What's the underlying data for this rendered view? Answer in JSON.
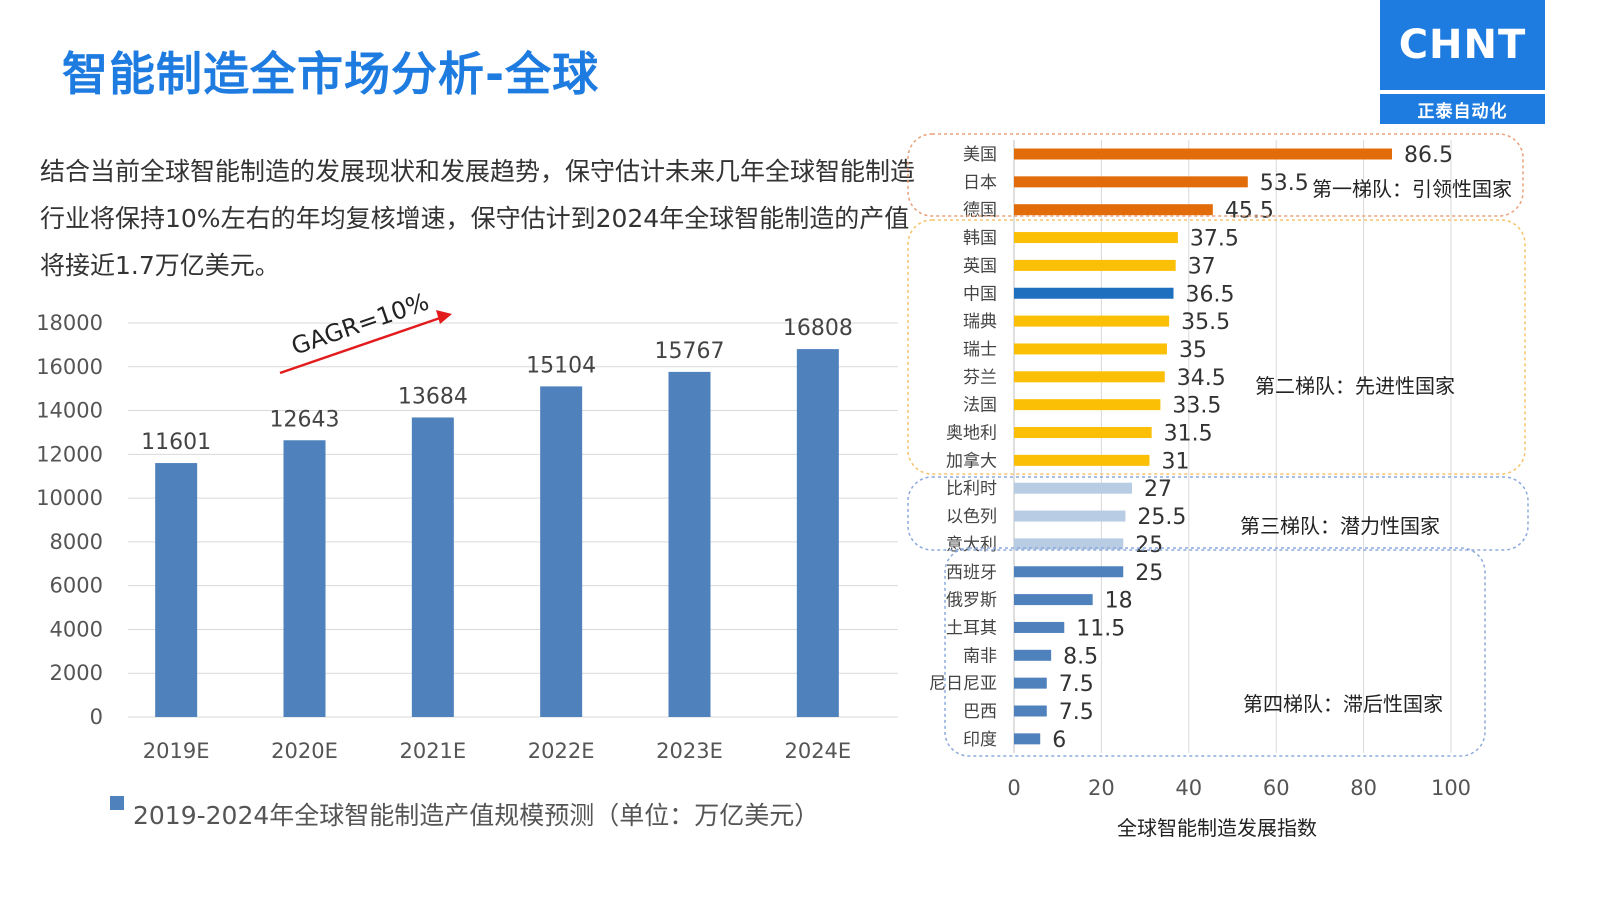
{
  "title": "智能制造全市场分析-全球",
  "logo": {
    "brand": "CHNT",
    "subtitle": "正泰自动化",
    "color": "#1e7be0"
  },
  "intro": "结合当前全球智能制造的发展现状和发展趋势，保守估计未来几年全球智能制造行业将保持10%左右的年均复核增速，保守估计到2024年全球智能制造的产值将接近1.7万亿美元。",
  "chart_data": [
    {
      "type": "bar",
      "title": "2019-2024年全球智能制造产值规模预测（单位：万亿美元）",
      "categories": [
        "2019E",
        "2020E",
        "2021E",
        "2022E",
        "2023E",
        "2024E"
      ],
      "values": [
        11601,
        12643,
        13684,
        15104,
        15767,
        16808
      ],
      "ylim": [
        0,
        18000
      ],
      "yticks": [
        0,
        2000,
        4000,
        6000,
        8000,
        10000,
        12000,
        14000,
        16000,
        18000
      ],
      "legend": "2019-2024年全球智能制造产值规模预测（单位：万亿美元）",
      "annotation": "GAGR=10%",
      "bar_color": "#4f81bd",
      "grid": true
    },
    {
      "type": "bar",
      "orientation": "horizontal",
      "xlabel": "全球智能制造发展指数",
      "xlim": [
        0,
        100
      ],
      "xticks": [
        0,
        20,
        40,
        60,
        80,
        100
      ],
      "categories": [
        "美国",
        "日本",
        "德国",
        "韩国",
        "英国",
        "中国",
        "瑞典",
        "瑞士",
        "芬兰",
        "法国",
        "奥地利",
        "加拿大",
        "比利时",
        "以色列",
        "意大利",
        "西班牙",
        "俄罗斯",
        "土耳其",
        "南非",
        "尼日尼亚",
        "巴西",
        "印度"
      ],
      "values": [
        86.5,
        53.5,
        45.5,
        37.5,
        37,
        36.5,
        35.5,
        35,
        34.5,
        33.5,
        31.5,
        31,
        27,
        25.5,
        25,
        25,
        18,
        11.5,
        8.5,
        7.5,
        7.5,
        6
      ],
      "value_labels": [
        "86.5",
        "53.5",
        "45.5",
        "37.5",
        "37",
        "36.5",
        "35.5",
        "35",
        "34.5",
        "33.5",
        "31.5",
        "31",
        "27",
        "25.5",
        "25",
        "25",
        "18",
        "11.5",
        "8.5",
        "7.5",
        "7.5",
        "6"
      ],
      "tiers": [
        {
          "label": "第一梯队：引领性国家",
          "from": 0,
          "to": 2,
          "color": "#e36c0a",
          "border": "#e8a07a"
        },
        {
          "label": "第二梯队：先进性国家",
          "from": 3,
          "to": 11,
          "color": "#fbbf05",
          "border": "#f5c36b"
        },
        {
          "label": "第三梯队：潜力性国家",
          "from": 12,
          "to": 14,
          "color": "#b8cce4",
          "border": "#8eaadb"
        },
        {
          "label": "第四梯队：滞后性国家",
          "from": 15,
          "to": 21,
          "color": "#4f81bd",
          "border": "#8eaadb"
        }
      ],
      "highlight": {
        "index": 5,
        "color": "#1f6fbf"
      },
      "grid": true
    }
  ]
}
